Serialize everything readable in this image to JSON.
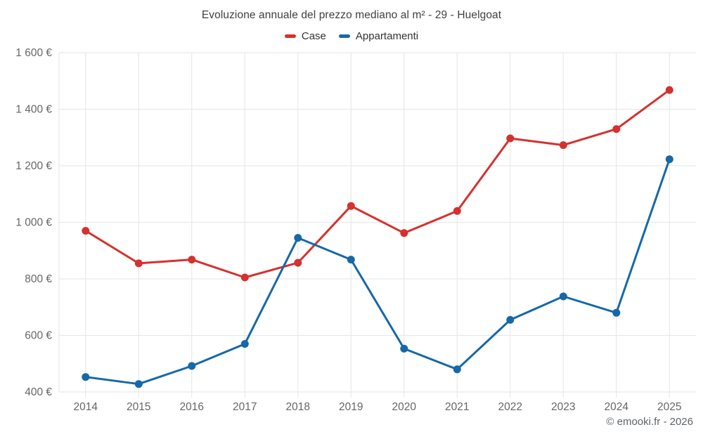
{
  "header": {
    "title": "Evoluzione annuale del prezzo mediano al m² - 29 - Huelgoat"
  },
  "legend": {
    "items": [
      {
        "label": "Case",
        "color": "#d5312e"
      },
      {
        "label": "Appartamenti",
        "color": "#1668a8"
      }
    ]
  },
  "footer": {
    "credit": "© emooki.fr - 2026"
  },
  "colors": {
    "grid": "#e6e6e6",
    "axis_label": "#666666",
    "title": "#3f3f3f"
  },
  "chart_data": {
    "type": "line",
    "title": "Evoluzione annuale del prezzo mediano al m² - 29 - Huelgoat",
    "categories": [
      "2014",
      "2015",
      "2016",
      "2017",
      "2018",
      "2019",
      "2020",
      "2021",
      "2022",
      "2023",
      "2024",
      "2025"
    ],
    "series": [
      {
        "name": "Case",
        "color": "#d5312e",
        "values": [
          970,
          855,
          868,
          805,
          857,
          1058,
          962,
          1040,
          1297,
          1273,
          1330,
          1468
        ]
      },
      {
        "name": "Appartamenti",
        "color": "#1668a8",
        "values": [
          453,
          428,
          492,
          570,
          945,
          868,
          553,
          480,
          655,
          738,
          680,
          1223
        ]
      }
    ],
    "xlabel": "",
    "ylabel": "",
    "ylim": [
      400,
      1600
    ],
    "y_ticks": [
      400,
      600,
      800,
      1000,
      1200,
      1400,
      1600
    ],
    "y_tick_suffix": " €",
    "grid": true,
    "legend_position": "top"
  }
}
